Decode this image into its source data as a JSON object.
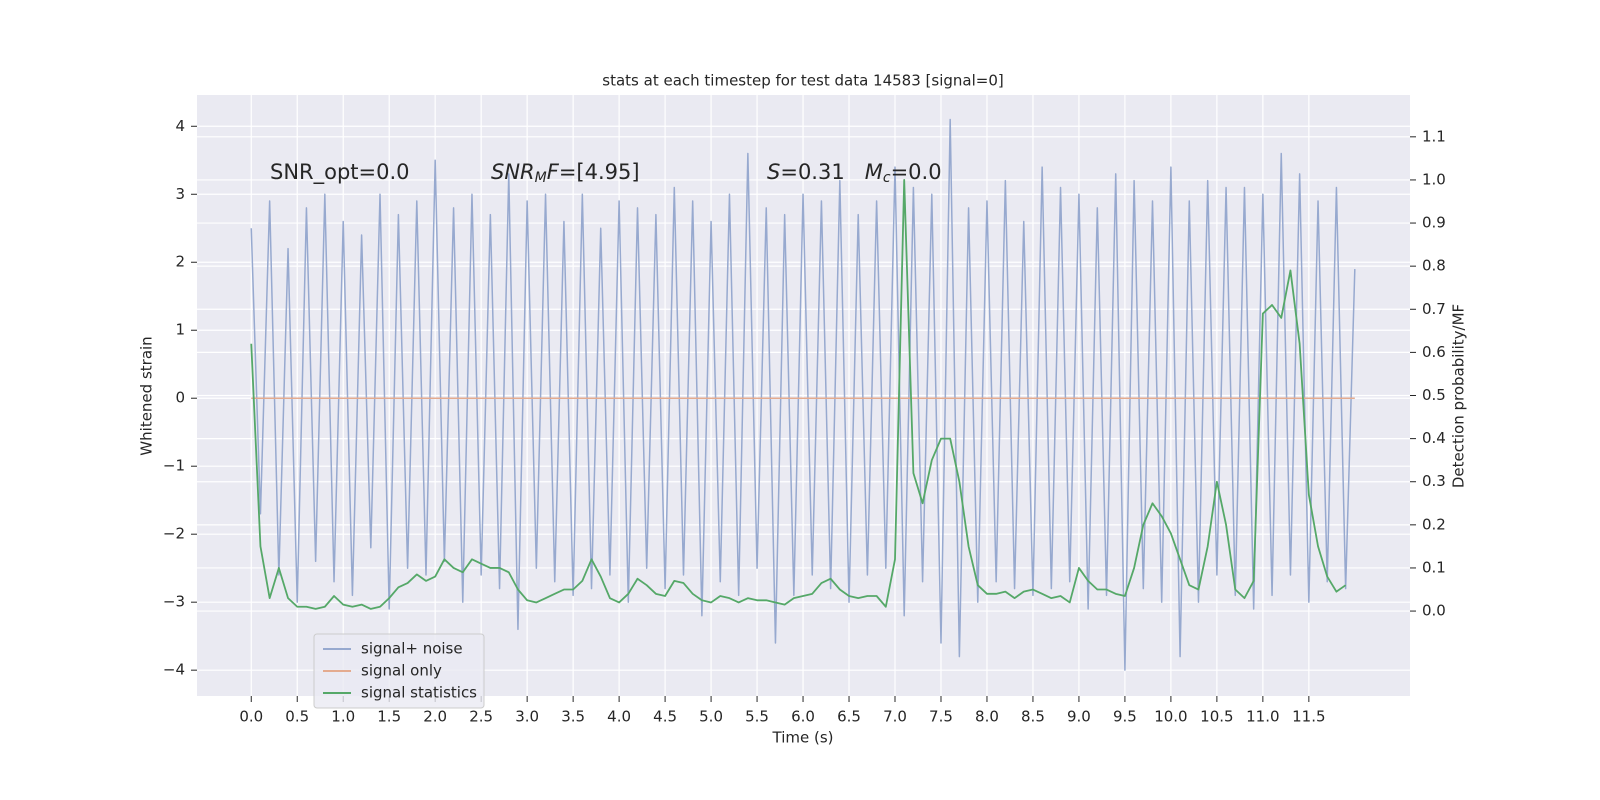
{
  "chart_data": {
    "type": "line",
    "title": "stats at each timestep for test data 14583 [signal=0]",
    "xlabel": "Time (s)",
    "ylabel": "Whitened strain",
    "y2label": "Detection probability/MF",
    "annotations": [
      [
        "SNR_opt=0.0"
      ],
      [
        "SNR",
        "M",
        "F",
        "=[4.95]"
      ],
      [
        "S",
        "=0.31   ",
        "M",
        "c",
        "=0.0"
      ]
    ],
    "xlim": [
      -0.59,
      12.6
    ],
    "ylim": [
      -4.38,
      4.46
    ],
    "y2lim": [
      -0.197,
      1.197
    ],
    "xticks": [
      {
        "value": 0,
        "label": "0.0"
      },
      0.5,
      {
        "value": 1,
        "label": "1.0"
      },
      1.5,
      {
        "value": 2,
        "label": "2.0"
      },
      2.5,
      {
        "value": 3,
        "label": "3.0"
      },
      3.5,
      {
        "value": 4,
        "label": "4.0"
      },
      4.5,
      {
        "value": 5,
        "label": "5.0"
      },
      5.5,
      {
        "value": 6,
        "label": "6.0"
      },
      6.5,
      {
        "value": 7,
        "label": "7.0"
      },
      7.5,
      {
        "value": 8,
        "label": "8.0"
      },
      8.5,
      {
        "value": 9,
        "label": "9.0"
      },
      9.5,
      {
        "value": 10,
        "label": "10.0"
      },
      10.5,
      {
        "value": 11,
        "label": "11.0"
      },
      11.5
    ],
    "yticks": [
      {
        "value": -4,
        "label": "−4"
      },
      {
        "value": -3,
        "label": "−3"
      },
      {
        "value": -2,
        "label": "−2"
      },
      {
        "value": -1,
        "label": "−1"
      },
      0,
      1,
      2,
      3,
      4
    ],
    "y2ticks": [
      {
        "value": 0,
        "label": "0.0"
      },
      0.1,
      0.2,
      0.3,
      0.4,
      0.5,
      0.6,
      0.7,
      0.8,
      0.9,
      {
        "value": 1,
        "label": "1.0"
      },
      1.1
    ],
    "grid": true,
    "legend": "lower left",
    "series": [
      {
        "name": "signal+ noise",
        "color": "#97a9cf",
        "x": [
          0.0,
          0.1,
          0.2,
          0.3,
          0.4,
          0.5,
          0.6,
          0.7,
          0.8,
          0.9,
          1.0,
          1.1,
          1.2,
          1.3,
          1.4,
          1.5,
          1.6,
          1.7,
          1.8,
          1.9,
          2.0,
          2.1,
          2.2,
          2.3,
          2.4,
          2.5,
          2.6,
          2.7,
          2.8,
          2.9,
          3.0,
          3.1,
          3.2,
          3.3,
          3.4,
          3.5,
          3.6,
          3.7,
          3.8,
          3.9,
          4.0,
          4.1,
          4.2,
          4.3,
          4.4,
          4.5,
          4.6,
          4.7,
          4.8,
          4.9,
          5.0,
          5.1,
          5.2,
          5.3,
          5.4,
          5.5,
          5.6,
          5.7,
          5.8,
          5.9,
          6.0,
          6.1,
          6.2,
          6.3,
          6.4,
          6.5,
          6.6,
          6.7,
          6.8,
          6.9,
          7.0,
          7.1,
          7.2,
          7.3,
          7.4,
          7.5,
          7.6,
          7.7,
          7.8,
          7.9,
          8.0,
          8.1,
          8.2,
          8.3,
          8.4,
          8.5,
          8.6,
          8.7,
          8.8,
          8.9,
          9.0,
          9.1,
          9.2,
          9.3,
          9.4,
          9.5,
          9.6,
          9.7,
          9.8,
          9.9,
          10.0,
          10.1,
          10.2,
          10.3,
          10.4,
          10.5,
          10.6,
          10.7,
          10.8,
          10.9,
          11.0,
          11.1,
          11.2,
          11.3,
          11.4,
          11.5,
          11.6,
          11.7,
          11.8,
          11.9,
          12.0
        ],
        "values": [
          2.5,
          -1.7,
          2.9,
          -2.6,
          2.2,
          -3.0,
          2.8,
          -2.4,
          3.0,
          -2.7,
          2.6,
          -2.9,
          2.4,
          -2.2,
          3.0,
          -3.1,
          2.7,
          -2.5,
          2.9,
          -2.6,
          3.5,
          -2.4,
          2.8,
          -3.0,
          3.0,
          -2.6,
          2.7,
          -2.8,
          3.3,
          -3.4,
          2.9,
          -2.5,
          3.0,
          -2.7,
          2.6,
          -2.9,
          3.0,
          -2.8,
          2.5,
          -2.6,
          2.9,
          -3.0,
          2.8,
          -2.5,
          2.7,
          -2.8,
          3.1,
          -2.6,
          2.9,
          -3.2,
          2.6,
          -2.7,
          3.0,
          -2.9,
          3.6,
          -2.5,
          2.8,
          -3.6,
          2.7,
          -2.9,
          3.0,
          -2.6,
          2.9,
          -2.8,
          3.2,
          -3.0,
          2.7,
          -2.6,
          2.9,
          -2.5,
          3.4,
          -3.2,
          3.1,
          -2.7,
          3.0,
          -3.6,
          4.1,
          -3.8,
          2.8,
          -3.0,
          2.9,
          -2.7,
          3.2,
          -2.8,
          2.6,
          -2.9,
          3.4,
          -2.8,
          3.1,
          -2.7,
          3.0,
          -3.1,
          2.8,
          -2.9,
          3.3,
          -4.0,
          3.2,
          -2.8,
          2.9,
          -3.0,
          3.4,
          -3.8,
          2.9,
          -3.0,
          3.2,
          -2.6,
          3.1,
          -2.9,
          3.1,
          -3.1,
          3.0,
          -2.9,
          3.6,
          -2.6,
          3.3,
          -3.0,
          2.9,
          -2.7,
          3.1,
          -2.8,
          1.9
        ]
      },
      {
        "name": "signal only",
        "color": "#e4ab8f",
        "x": [
          0,
          12
        ],
        "values": [
          0,
          0
        ]
      },
      {
        "name": "signal statistics",
        "color": "#55a868",
        "axis": "y2",
        "x": [
          0.0,
          0.1,
          0.2,
          0.3,
          0.4,
          0.5,
          0.6,
          0.7,
          0.8,
          0.9,
          1.0,
          1.1,
          1.2,
          1.3,
          1.4,
          1.5,
          1.6,
          1.7,
          1.8,
          1.9,
          2.0,
          2.1,
          2.2,
          2.3,
          2.4,
          2.5,
          2.6,
          2.7,
          2.8,
          2.9,
          3.0,
          3.1,
          3.2,
          3.3,
          3.4,
          3.5,
          3.6,
          3.7,
          3.8,
          3.9,
          4.0,
          4.1,
          4.2,
          4.3,
          4.4,
          4.5,
          4.6,
          4.7,
          4.8,
          4.9,
          5.0,
          5.1,
          5.2,
          5.3,
          5.4,
          5.5,
          5.6,
          5.7,
          5.8,
          5.9,
          6.0,
          6.1,
          6.2,
          6.3,
          6.4,
          6.5,
          6.6,
          6.7,
          6.8,
          6.9,
          7.0,
          7.1,
          7.2,
          7.3,
          7.4,
          7.5,
          7.6,
          7.7,
          7.8,
          7.9,
          8.0,
          8.1,
          8.2,
          8.3,
          8.4,
          8.5,
          8.6,
          8.7,
          8.8,
          8.9,
          9.0,
          9.1,
          9.2,
          9.3,
          9.4,
          9.5,
          9.6,
          9.7,
          9.8,
          9.9,
          10.0,
          10.1,
          10.2,
          10.3,
          10.4,
          10.5,
          10.6,
          10.7,
          10.8,
          10.9,
          11.0,
          11.1,
          11.2,
          11.3,
          11.4,
          11.5,
          11.6,
          11.7,
          11.8,
          11.9
        ],
        "values": [
          0.62,
          0.15,
          0.03,
          0.1,
          0.03,
          0.01,
          0.01,
          0.005,
          0.01,
          0.035,
          0.015,
          0.01,
          0.015,
          0.005,
          0.01,
          0.03,
          0.055,
          0.065,
          0.085,
          0.07,
          0.08,
          0.12,
          0.1,
          0.09,
          0.12,
          0.11,
          0.1,
          0.1,
          0.09,
          0.05,
          0.025,
          0.02,
          0.03,
          0.04,
          0.05,
          0.05,
          0.07,
          0.12,
          0.08,
          0.03,
          0.02,
          0.04,
          0.075,
          0.06,
          0.04,
          0.035,
          0.07,
          0.065,
          0.04,
          0.025,
          0.02,
          0.035,
          0.03,
          0.02,
          0.03,
          0.025,
          0.025,
          0.02,
          0.015,
          0.03,
          0.035,
          0.04,
          0.065,
          0.075,
          0.05,
          0.035,
          0.03,
          0.035,
          0.035,
          0.01,
          0.12,
          1.0,
          0.32,
          0.25,
          0.35,
          0.4,
          0.4,
          0.3,
          0.15,
          0.06,
          0.04,
          0.04,
          0.045,
          0.03,
          0.045,
          0.05,
          0.04,
          0.03,
          0.035,
          0.02,
          0.1,
          0.07,
          0.05,
          0.05,
          0.04,
          0.035,
          0.1,
          0.2,
          0.25,
          0.22,
          0.18,
          0.12,
          0.06,
          0.05,
          0.15,
          0.3,
          0.2,
          0.05,
          0.03,
          0.07,
          0.69,
          0.71,
          0.68,
          0.79,
          0.62,
          0.27,
          0.15,
          0.08,
          0.045,
          0.06
        ]
      }
    ]
  }
}
